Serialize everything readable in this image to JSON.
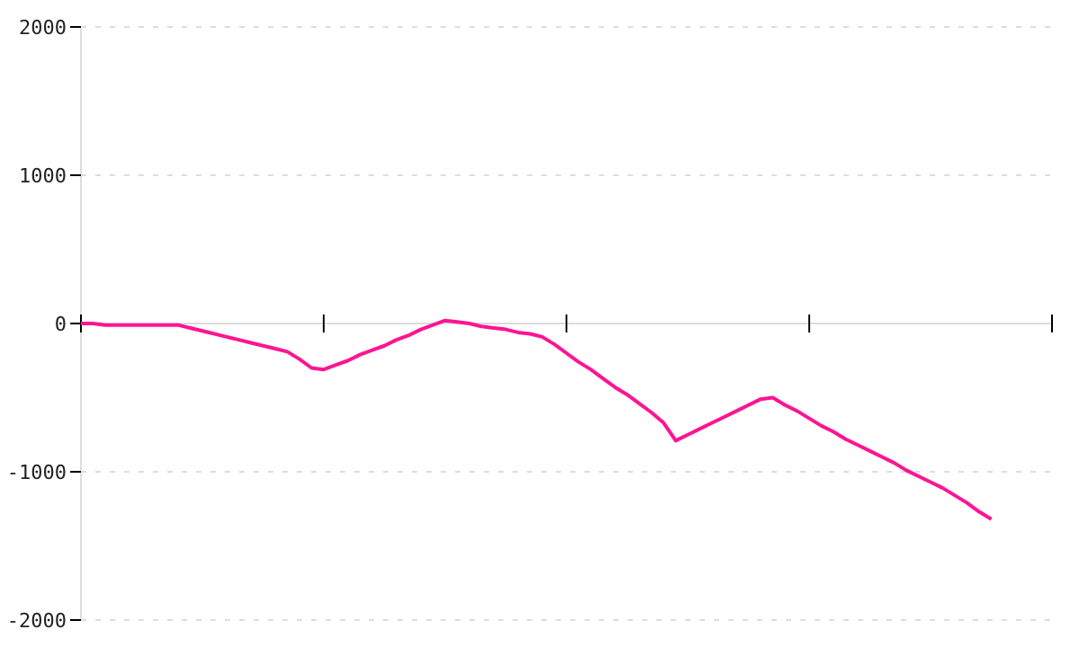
{
  "chart_data": {
    "type": "line",
    "categories": [
      null,
      null,
      null,
      null,
      null,
      null,
      null,
      null,
      null,
      null,
      null,
      null,
      null,
      null,
      null,
      null,
      null,
      null,
      null,
      null,
      null,
      null,
      null,
      null,
      null,
      null,
      null,
      null,
      null,
      null,
      null,
      null,
      null,
      null,
      null,
      null,
      null,
      null,
      null,
      null,
      null,
      null,
      null,
      null,
      null,
      null,
      null,
      null,
      null,
      null,
      null,
      null,
      null,
      null,
      null,
      null,
      null,
      null,
      null,
      null,
      null,
      null,
      null,
      null,
      null,
      null,
      null,
      null,
      null,
      null,
      null,
      null,
      null,
      null,
      null,
      null,
      null,
      null,
      null,
      null,
      null
    ],
    "series": [
      {
        "color": "#ff1493",
        "values": [
          0,
          0,
          -10,
          -10,
          -10,
          -10,
          -10,
          -10,
          -10,
          -30,
          -50,
          -70,
          -90,
          -110,
          -130,
          -150,
          -170,
          -190,
          -240,
          -300,
          -310,
          -280,
          -250,
          -210,
          -180,
          -150,
          -110,
          -80,
          -40,
          -10,
          20,
          10,
          0,
          -20,
          -30,
          -40,
          -60,
          -70,
          -90,
          -140,
          -200,
          -260,
          -310,
          -370,
          -430,
          -480,
          -540,
          -600,
          -670,
          -790,
          -750,
          -710,
          -670,
          -630,
          -590,
          -550,
          -510,
          -500,
          -550,
          -590,
          -640,
          -690,
          -730,
          -780,
          -820,
          -860,
          -900,
          -940,
          -990,
          -1030,
          -1070,
          -1110,
          -1160,
          -1210,
          -1270,
          -1320,
          null,
          null,
          null,
          null,
          null
        ]
      }
    ],
    "ylim": [
      -2000,
      2000
    ],
    "yticks": [
      -2000,
      -1000,
      0,
      1000,
      2000
    ],
    "tick_labels": "y",
    "grid": "y",
    "line_style": "solid",
    "marker": "none"
  }
}
